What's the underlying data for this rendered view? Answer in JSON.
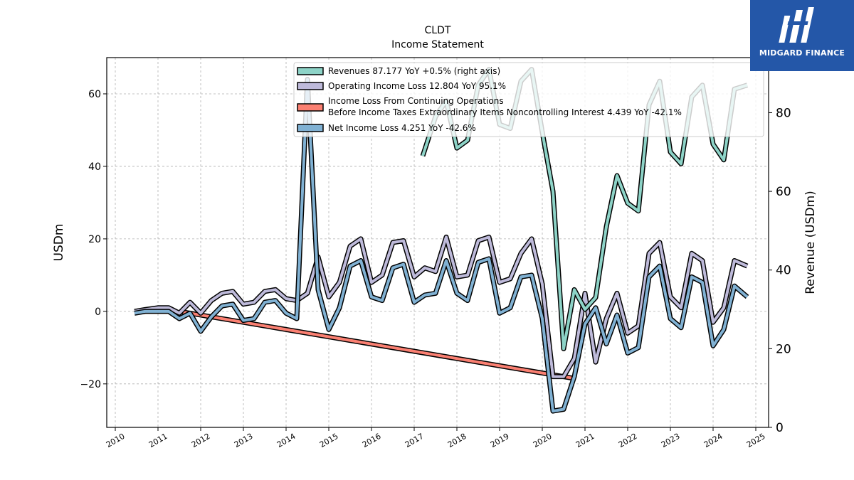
{
  "chart_data": {
    "type": "line",
    "title": "CLDT",
    "subtitle": "Income Statement",
    "ylabel": "USDm",
    "y2label": "Revenue (USDm)",
    "xlim": [
      2009.8,
      2025.3
    ],
    "ylim": [
      -32,
      70
    ],
    "y2lim": [
      0,
      94
    ],
    "x_ticks": [
      2010,
      2011,
      2012,
      2013,
      2014,
      2015,
      2016,
      2017,
      2018,
      2019,
      2020,
      2021,
      2022,
      2023,
      2024,
      2025
    ],
    "y_ticks": [
      -20,
      0,
      20,
      40,
      60
    ],
    "y2_ticks": [
      0,
      20,
      40,
      60,
      80
    ],
    "grid": true,
    "legend_position": "top-right",
    "series": [
      {
        "name": "Revenues  87.177 YoY +0.5% (right axis)",
        "axis": "right",
        "color": "#8dd3c7",
        "x": [
          2017.2,
          2017.5,
          2017.75,
          2018.0,
          2018.25,
          2018.5,
          2018.75,
          2019.0,
          2019.25,
          2019.5,
          2019.75,
          2020.0,
          2020.25,
          2020.5,
          2020.75,
          2021.0,
          2021.25,
          2021.5,
          2021.75,
          2022.0,
          2022.25,
          2022.5,
          2022.75,
          2023.0,
          2023.25,
          2023.5,
          2023.75,
          2024.0,
          2024.25,
          2024.5,
          2024.8
        ],
        "y": [
          69,
          79,
          83,
          71,
          73,
          87,
          91,
          77,
          76,
          88,
          91,
          75,
          60,
          20,
          35,
          30,
          33,
          51,
          64,
          57,
          55,
          82,
          88,
          70,
          67,
          84,
          87,
          72,
          68,
          86,
          87
        ]
      },
      {
        "name": "Operating Income Loss  12.804 YoY 95.1%",
        "axis": "left",
        "color": "#bebada",
        "x": [
          2010.45,
          2010.7,
          2011.0,
          2011.25,
          2011.5,
          2011.75,
          2012.0,
          2012.25,
          2012.5,
          2012.75,
          2013.0,
          2013.25,
          2013.5,
          2013.75,
          2014.0,
          2014.25,
          2014.5,
          2014.75,
          2015.0,
          2015.25,
          2015.5,
          2015.75,
          2016.0,
          2016.25,
          2016.5,
          2016.75,
          2017.0,
          2017.25,
          2017.5,
          2017.75,
          2018.0,
          2018.25,
          2018.5,
          2018.75,
          2019.0,
          2019.25,
          2019.5,
          2019.75,
          2020.0,
          2020.25,
          2020.5,
          2020.75,
          2021.0,
          2021.25,
          2021.5,
          2021.75,
          2022.0,
          2022.25,
          2022.5,
          2022.75,
          2023.0,
          2023.25,
          2023.5,
          2023.75,
          2024.0,
          2024.25,
          2024.5,
          2024.8
        ],
        "y": [
          0,
          0.5,
          1,
          1,
          -0.5,
          2.5,
          -0.5,
          3,
          5,
          5.5,
          2,
          2.5,
          5.5,
          6,
          3.5,
          3,
          5,
          15,
          4,
          8,
          18,
          20,
          8,
          10,
          19,
          19.5,
          9.5,
          12,
          11,
          20.5,
          9.5,
          10,
          19.5,
          20.5,
          8,
          9,
          16,
          20,
          7.5,
          -18,
          -18,
          -13,
          5,
          -14,
          -2,
          5,
          -6,
          -4,
          16,
          19,
          4,
          1,
          16,
          14,
          -3,
          1,
          14,
          12.5
        ]
      },
      {
        "name": "Income Loss From Continuing Operations Before Income Taxes Extraordinary Items Noncontrolling Interest  4.439 YoY -42.1%",
        "axis": "left",
        "color": "#fb8072",
        "x": [
          2011.5,
          2020.75
        ],
        "y": [
          0,
          -18.5
        ]
      },
      {
        "name": "Net Income Loss  4.251 YoY -42.6%",
        "axis": "left",
        "color": "#80b1d3",
        "x": [
          2010.45,
          2010.7,
          2011.0,
          2011.25,
          2011.5,
          2011.75,
          2012.0,
          2012.25,
          2012.5,
          2012.75,
          2013.0,
          2013.25,
          2013.5,
          2013.75,
          2014.0,
          2014.25,
          2014.5,
          2014.75,
          2015.0,
          2015.25,
          2015.5,
          2015.75,
          2016.0,
          2016.25,
          2016.5,
          2016.75,
          2017.0,
          2017.25,
          2017.5,
          2017.75,
          2018.0,
          2018.25,
          2018.5,
          2018.75,
          2019.0,
          2019.25,
          2019.5,
          2019.75,
          2020.0,
          2020.25,
          2020.5,
          2020.75,
          2021.0,
          2021.25,
          2021.5,
          2021.75,
          2022.0,
          2022.25,
          2022.5,
          2022.75,
          2023.0,
          2023.25,
          2023.5,
          2023.75,
          2024.0,
          2024.25,
          2024.5,
          2024.8
        ],
        "y": [
          -0.5,
          0,
          0,
          0,
          -2,
          -0.5,
          -5.5,
          -1.5,
          1.5,
          2,
          -2.5,
          -2,
          2.5,
          3,
          -0.5,
          -2,
          64,
          6,
          -5,
          1,
          12.5,
          14,
          4,
          3,
          12,
          13,
          2.5,
          4.5,
          5,
          14,
          5,
          3,
          13.5,
          14.5,
          -0.5,
          1,
          9.5,
          10,
          -2,
          -27.5,
          -27,
          -18,
          -3.5,
          1,
          -9,
          -1,
          -11.5,
          -10,
          9.5,
          12.5,
          -2,
          -4.5,
          9.5,
          8,
          -9.5,
          -5,
          7,
          4
        ]
      }
    ]
  },
  "logo": {
    "text": "MIDGARD FINANCE"
  }
}
